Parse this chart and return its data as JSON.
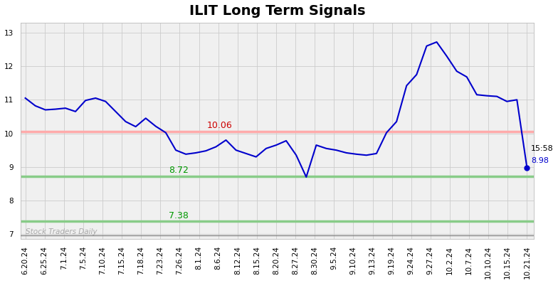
{
  "title": "ILIT Long Term Signals",
  "title_fontsize": 14,
  "background_color": "#ffffff",
  "plot_bg_color": "#f0f0f0",
  "line_color": "#0000cc",
  "line_width": 1.5,
  "hline_red_value": 10.06,
  "hline_red_color": "#ffaaaa",
  "hline_red_border_color": "#ff8888",
  "hline_red_label": "10.06",
  "hline_green1_value": 8.72,
  "hline_green1_color": "#88cc88",
  "hline_green1_label": "8.72",
  "hline_green2_value": 7.38,
  "hline_green2_color": "#88cc88",
  "hline_green2_label": "7.38",
  "hline_black_value": 6.97,
  "hline_black_color": "#888888",
  "watermark": "Stock Traders Daily",
  "watermark_color": "#aaaaaa",
  "last_label_time": "15:58",
  "last_label_value": "8.98",
  "last_dot_color": "#0000cc",
  "ylim": [
    6.85,
    13.3
  ],
  "yticks": [
    7,
    8,
    9,
    10,
    11,
    12,
    13
  ],
  "x_labels": [
    "6.20.24",
    "6.25.24",
    "7.1.24",
    "7.5.24",
    "7.10.24",
    "7.15.24",
    "7.18.24",
    "7.23.24",
    "7.26.24",
    "8.1.24",
    "8.6.24",
    "8.12.24",
    "8.15.24",
    "8.20.24",
    "8.27.24",
    "8.30.24",
    "9.5.24",
    "9.10.24",
    "9.13.24",
    "9.19.24",
    "9.24.24",
    "9.27.24",
    "10.2.24",
    "10.7.24",
    "10.10.24",
    "10.15.24",
    "10.21.24"
  ],
  "y_values": [
    11.05,
    10.82,
    10.7,
    10.72,
    10.75,
    10.65,
    10.98,
    11.05,
    10.95,
    10.65,
    10.35,
    10.2,
    10.45,
    10.21,
    10.02,
    9.5,
    9.38,
    9.42,
    9.48,
    9.6,
    9.8,
    9.5,
    9.4,
    9.3,
    9.55,
    9.65,
    9.78,
    9.35,
    8.7,
    9.65,
    9.55,
    9.5,
    9.42,
    9.38,
    9.35,
    9.4,
    10.02,
    10.35,
    11.42,
    11.75,
    12.6,
    12.72,
    12.3,
    11.85,
    11.68,
    11.15,
    11.12,
    11.1,
    10.95,
    11.0,
    8.98
  ],
  "grid_color": "#cccccc",
  "tick_label_fontsize": 7.5,
  "annotation_fontsize": 9,
  "hline_lw": 1.5
}
